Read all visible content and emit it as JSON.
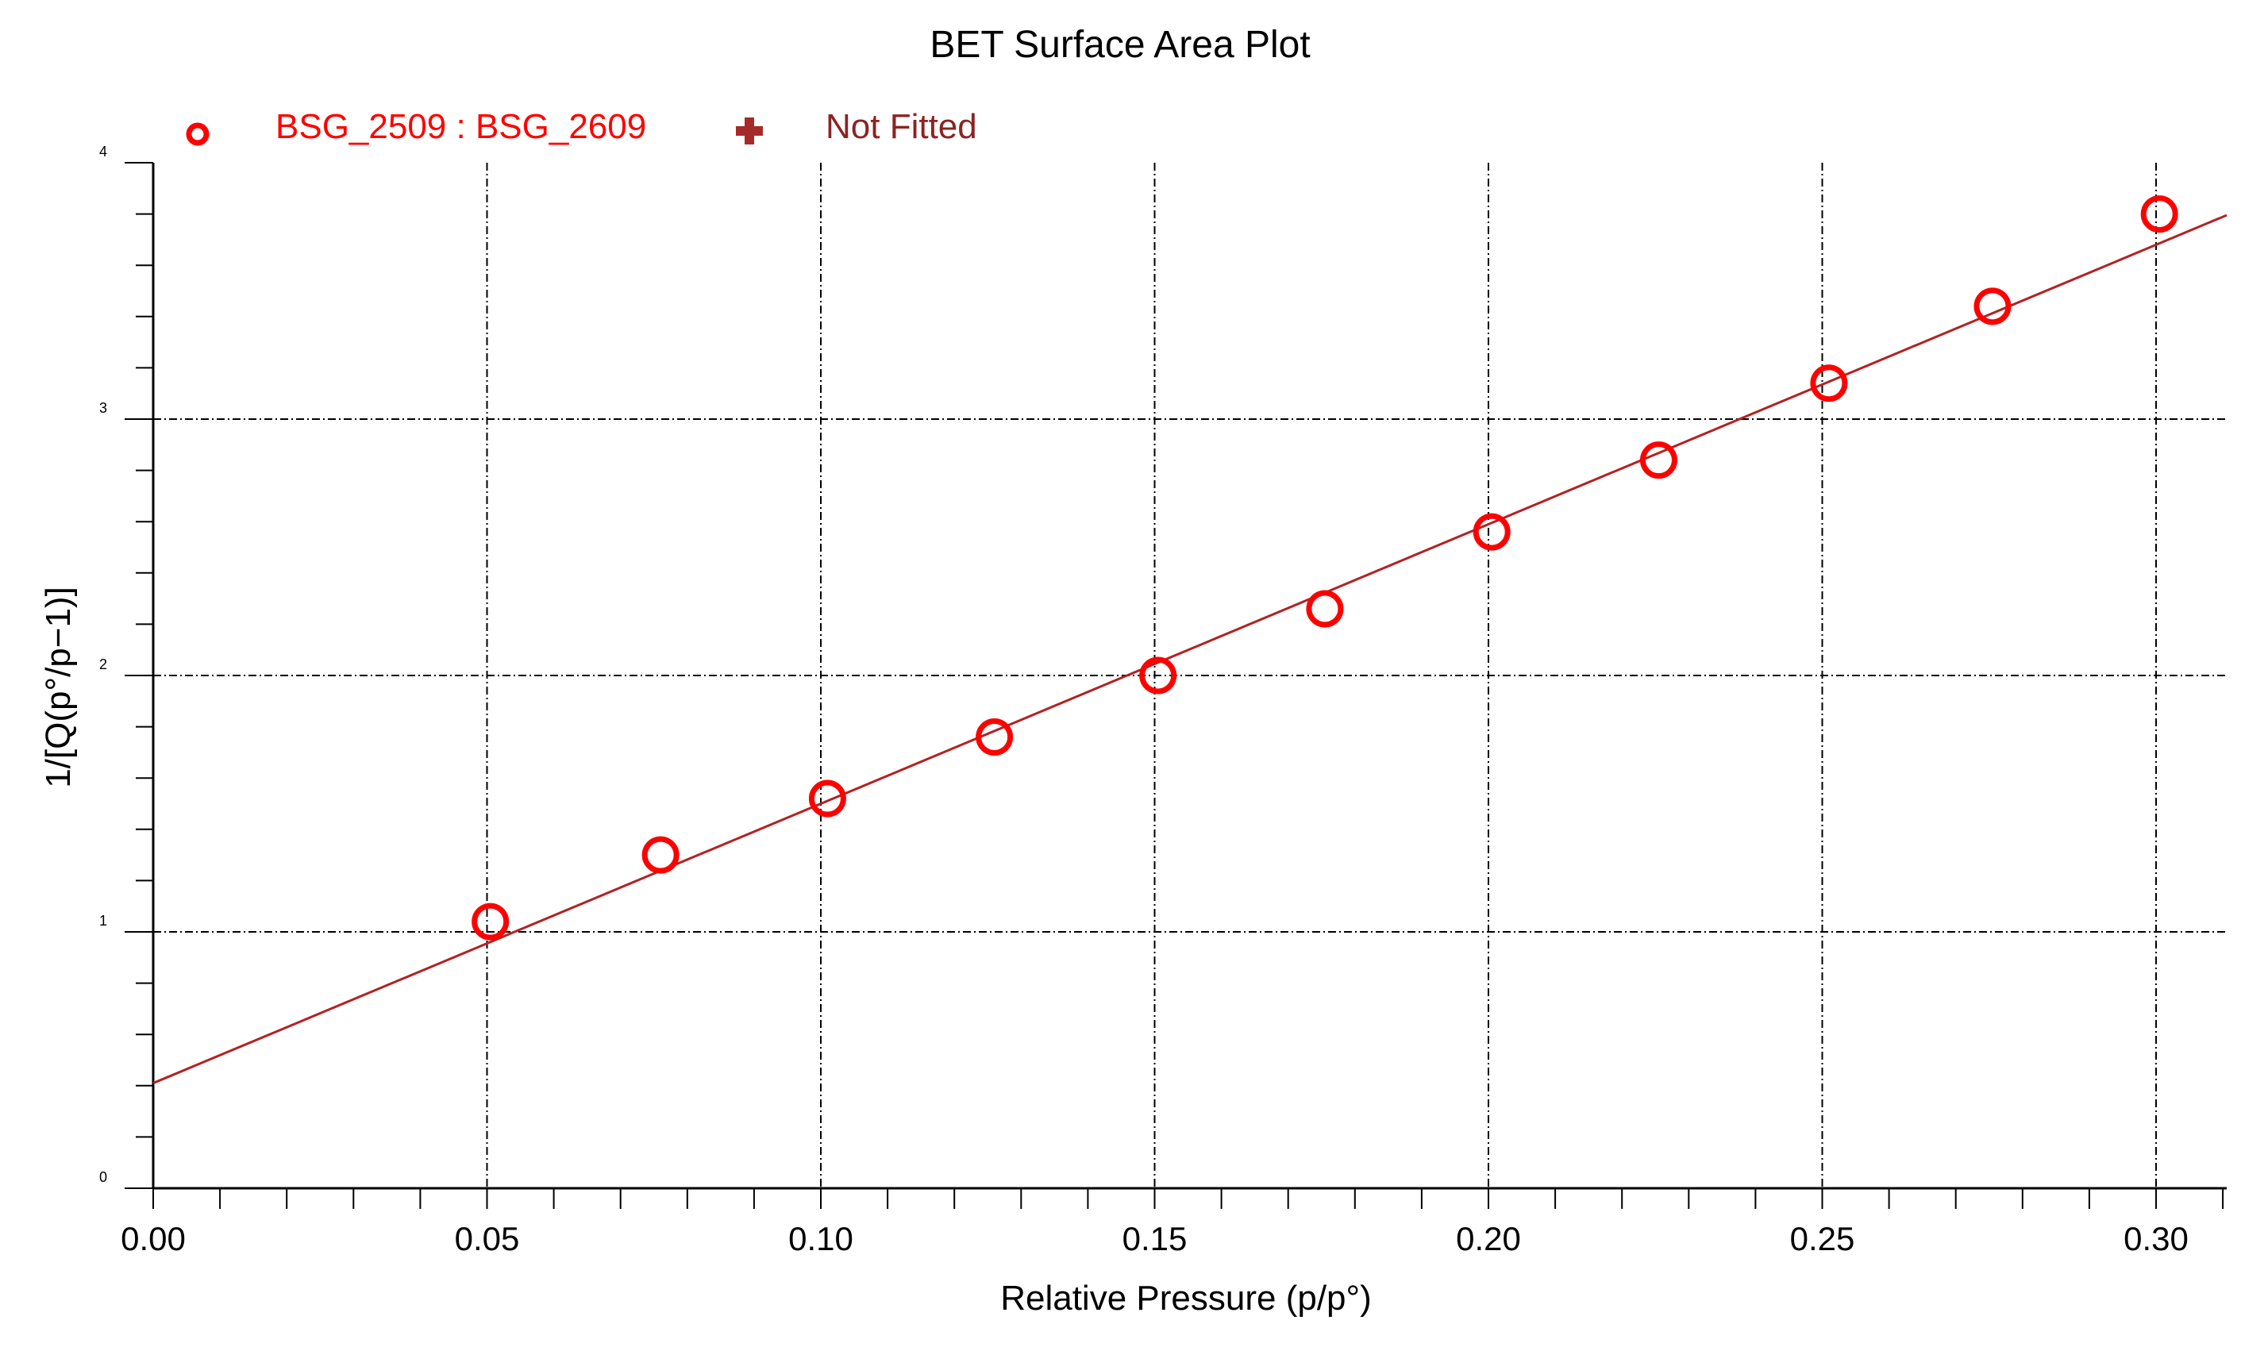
{
  "chart_data": {
    "type": "scatter",
    "title": "BET Surface Area Plot",
    "xlabel": "Relative Pressure (p/p°)",
    "ylabel": "1/[Q(p°/p−1)]",
    "xlim": [
      0.0,
      0.31
    ],
    "ylim": [
      0,
      4
    ],
    "x_ticks": [
      "0.00",
      "0.05",
      "0.10",
      "0.15",
      "0.20",
      "0.25",
      "0.30"
    ],
    "y_ticks": [
      "0",
      "1",
      "2",
      "3",
      "4"
    ],
    "grid": true,
    "legend_position": "top-left",
    "series": [
      {
        "name": "BSG_2509 : BSG_2609",
        "marker": "open-circle",
        "color": "#ff0000",
        "points": [
          {
            "x": 0.0505,
            "y": 1.04
          },
          {
            "x": 0.076,
            "y": 1.3
          },
          {
            "x": 0.101,
            "y": 1.52
          },
          {
            "x": 0.126,
            "y": 1.76
          },
          {
            "x": 0.1505,
            "y": 2.0
          },
          {
            "x": 0.1755,
            "y": 2.26
          },
          {
            "x": 0.2005,
            "y": 2.56
          },
          {
            "x": 0.2255,
            "y": 2.84
          },
          {
            "x": 0.251,
            "y": 3.14
          },
          {
            "x": 0.2755,
            "y": 3.44
          },
          {
            "x": 0.3005,
            "y": 3.8
          }
        ]
      },
      {
        "name": "Not Fitted",
        "marker": "plus",
        "color": "#a52a2a",
        "points": []
      }
    ],
    "fit_line": {
      "color": "#b22222",
      "intercept": 0.41,
      "slope": 10.9
    }
  }
}
